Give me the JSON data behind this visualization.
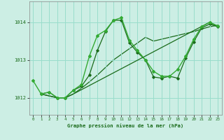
{
  "title": "Graphe pression niveau de la mer (hPa)",
  "background_color": "#cceee4",
  "grid_color": "#99ddcc",
  "line_color_dark": "#1a6b1a",
  "line_color_light": "#33aa33",
  "xlim": [
    -0.5,
    23.5
  ],
  "ylim": [
    1011.55,
    1014.55
  ],
  "yticks": [
    1012,
    1013,
    1014
  ],
  "xticks": [
    0,
    1,
    2,
    3,
    4,
    5,
    6,
    7,
    8,
    9,
    10,
    11,
    12,
    13,
    14,
    15,
    16,
    17,
    18,
    19,
    20,
    21,
    22,
    23
  ],
  "series1_x": [
    0,
    1,
    2,
    3,
    4,
    5,
    6,
    7,
    8,
    9,
    10,
    11,
    12,
    13,
    14,
    15,
    16,
    17,
    18,
    19,
    20,
    21,
    22,
    23
  ],
  "series1_y": [
    1012.45,
    1012.1,
    1012.15,
    1012.0,
    1012.0,
    1012.2,
    1012.35,
    1013.1,
    1013.65,
    1013.78,
    1014.05,
    1014.12,
    1013.52,
    1013.25,
    1013.0,
    1012.7,
    1012.57,
    1012.57,
    1012.75,
    1013.1,
    1013.55,
    1013.88,
    1014.0,
    1013.9
  ],
  "series2_x": [
    1,
    2,
    3,
    4,
    5,
    6,
    7,
    8,
    9,
    10,
    11,
    12,
    13,
    14,
    15,
    16,
    17,
    18,
    19,
    20,
    21,
    22,
    23
  ],
  "series2_y": [
    1012.1,
    1012.15,
    1012.0,
    1012.0,
    1012.2,
    1012.3,
    1012.6,
    1013.25,
    1013.75,
    1014.05,
    1014.05,
    1013.45,
    1013.2,
    1013.0,
    1012.55,
    1012.52,
    1012.57,
    1012.52,
    1013.05,
    1013.48,
    1013.85,
    1013.95,
    1013.88
  ],
  "series3_x": [
    1,
    3,
    4,
    5,
    22,
    23
  ],
  "series3_y": [
    1012.1,
    1012.0,
    1012.0,
    1012.1,
    1014.0,
    1013.88
  ],
  "series4_x": [
    1,
    3,
    4,
    5,
    6,
    7,
    8,
    9,
    10,
    11,
    12,
    13,
    14,
    15,
    16,
    17,
    18,
    19,
    20,
    21,
    22,
    23
  ],
  "series4_y": [
    1012.1,
    1012.0,
    1012.0,
    1012.1,
    1012.25,
    1012.42,
    1012.6,
    1012.8,
    1013.0,
    1013.15,
    1013.3,
    1013.45,
    1013.6,
    1013.5,
    1013.55,
    1013.6,
    1013.65,
    1013.7,
    1013.75,
    1013.82,
    1013.88,
    1013.92
  ]
}
